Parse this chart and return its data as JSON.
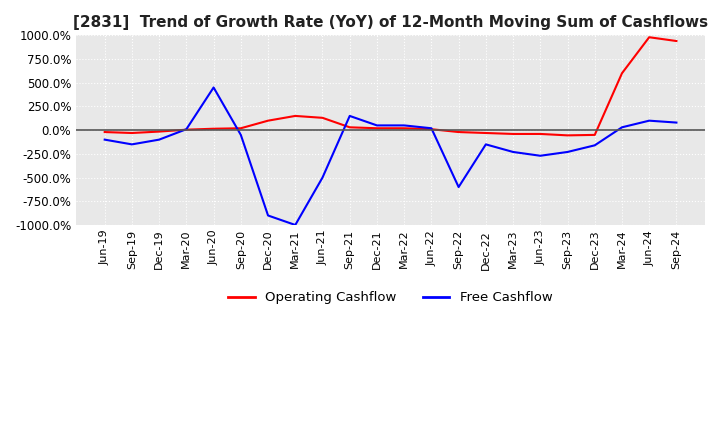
{
  "title": "[2831]  Trend of Growth Rate (YoY) of 12-Month Moving Sum of Cashflows",
  "title_fontsize": 11,
  "ylim": [
    -1000,
    1000
  ],
  "yticks": [
    -1000,
    -750,
    -500,
    -250,
    0,
    250,
    500,
    750,
    1000
  ],
  "background_color": "#ffffff",
  "plot_background_color": "#e8e8e8",
  "grid_color": "#ffffff",
  "legend_labels": [
    "Operating Cashflow",
    "Free Cashflow"
  ],
  "legend_colors": [
    "#ff0000",
    "#0000ff"
  ],
  "x_labels": [
    "Jun-19",
    "Sep-19",
    "Dec-19",
    "Mar-20",
    "Jun-20",
    "Sep-20",
    "Dec-20",
    "Mar-21",
    "Jun-21",
    "Sep-21",
    "Dec-21",
    "Mar-22",
    "Jun-22",
    "Sep-22",
    "Dec-22",
    "Mar-23",
    "Jun-23",
    "Sep-23",
    "Dec-23",
    "Mar-24",
    "Jun-24",
    "Sep-24"
  ],
  "operating_cashflow": [
    -20,
    -30,
    -15,
    5,
    15,
    20,
    100,
    150,
    130,
    30,
    20,
    20,
    10,
    -20,
    -30,
    -40,
    -40,
    -55,
    -50,
    600,
    980,
    940
  ],
  "free_cashflow": [
    -100,
    -150,
    -100,
    10,
    450,
    -50,
    -900,
    -1000,
    -500,
    150,
    50,
    50,
    20,
    -600,
    -150,
    -230,
    -270,
    -230,
    -160,
    30,
    100,
    80
  ]
}
